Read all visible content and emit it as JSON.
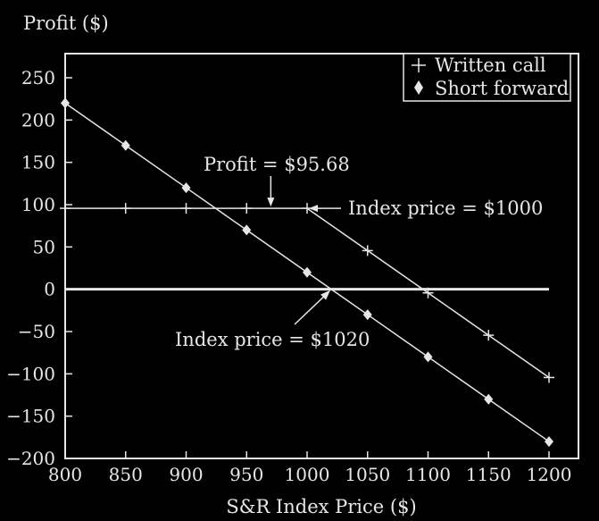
{
  "chart_data": {
    "type": "line",
    "ylabel": "Profit ($)",
    "xlabel": "S&R Index Price ($)",
    "xlim": [
      800,
      1200
    ],
    "ylim": [
      -200,
      250
    ],
    "x_ticks": [
      800,
      850,
      900,
      950,
      1000,
      1050,
      1100,
      1150,
      1200
    ],
    "y_ticks": [
      -200,
      -150,
      -100,
      -50,
      0,
      50,
      100,
      150,
      200,
      250
    ],
    "x_tick_labels": [
      "800",
      "850",
      "900",
      "950",
      "1000",
      "1050",
      "1100",
      "1150",
      "1200"
    ],
    "y_tick_labels": [
      "−200",
      "−150",
      "−100",
      "−50",
      "0",
      "50",
      "100",
      "150",
      "200",
      "250"
    ],
    "grid": false,
    "legend_position": "top-right",
    "zero_line": true,
    "series": [
      {
        "name": "Written call",
        "marker": "plus",
        "x": [
          800,
          850,
          900,
          950,
          1000,
          1050,
          1100,
          1150,
          1200
        ],
        "y": [
          95.68,
          95.68,
          95.68,
          95.68,
          95.68,
          45.68,
          -4.32,
          -54.32,
          -104.32
        ]
      },
      {
        "name": "Short forward",
        "marker": "diamond",
        "x": [
          800,
          850,
          900,
          950,
          1000,
          1050,
          1100,
          1150,
          1200
        ],
        "y": [
          220,
          170,
          120,
          70,
          20,
          -30,
          -80,
          -130,
          -180
        ]
      }
    ],
    "annotations": [
      {
        "id": "profit",
        "text": "Profit = $95.68",
        "x": 970,
        "y": 95.68
      },
      {
        "id": "index1000",
        "text": "Index price = $1000",
        "x": 1000,
        "y": 95.68
      },
      {
        "id": "index1020",
        "text": "Index price = $1020",
        "x": 1020,
        "y": 0
      }
    ],
    "colors": {
      "background": "#000000",
      "foreground": "#e6e6e6"
    }
  }
}
